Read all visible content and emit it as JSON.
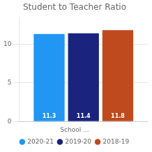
{
  "chart_data": {
    "type": "bar",
    "title": "Student to Teacher Ratio",
    "categories": [
      null
    ],
    "series": [
      {
        "name": "2020-21",
        "color": "#2196F3",
        "values": [
          11.3
        ]
      },
      {
        "name": "2019-20",
        "color": "#1A237E",
        "values": [
          11.4
        ]
      },
      {
        "name": "2018-19",
        "color": "#BF4A1E",
        "values": [
          11.8
        ]
      }
    ],
    "legend_title": "School ...",
    "ylim": [
      0,
      13.5
    ],
    "yticks": [
      0,
      5,
      10
    ],
    "grid": true,
    "legend": "bottom",
    "data_labels": true,
    "tick_labels": "y"
  }
}
